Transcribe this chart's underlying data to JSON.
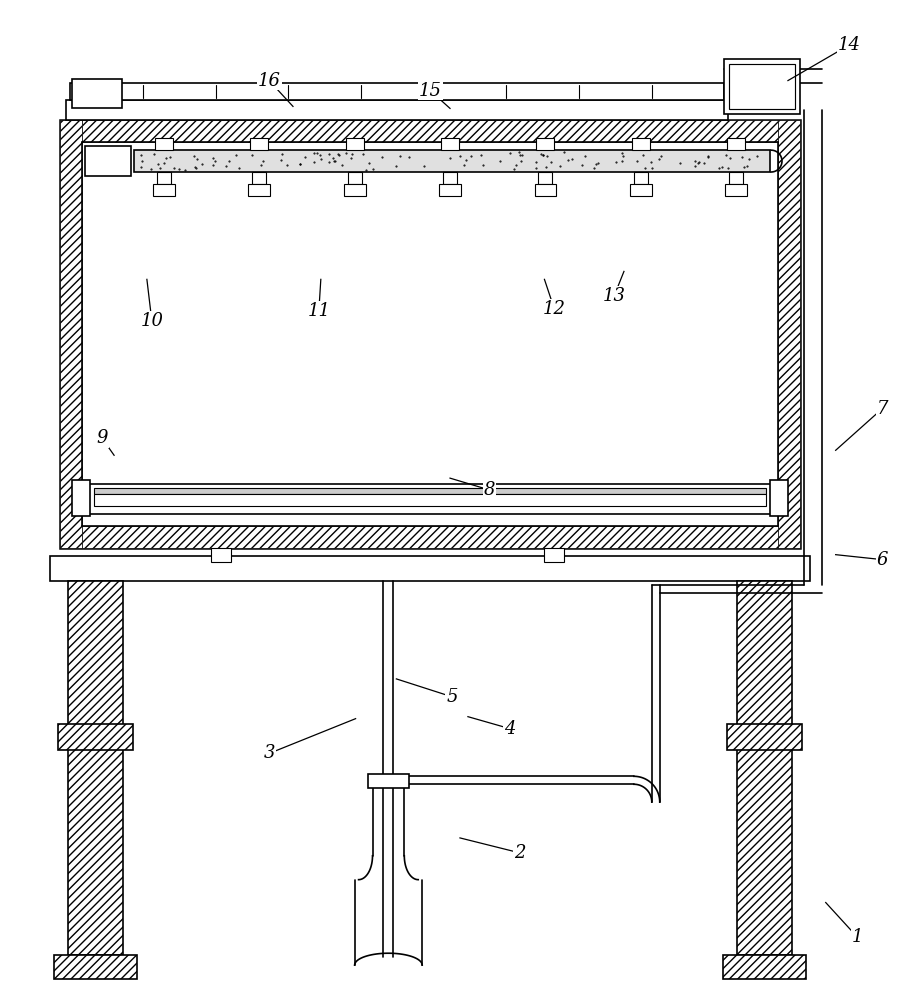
{
  "bg": "#ffffff",
  "lc": "#000000",
  "fig_w": 9.08,
  "fig_h": 10.0,
  "dpi": 100,
  "annotations": [
    [
      "1",
      860,
      940,
      828,
      905
    ],
    [
      "2",
      520,
      855,
      460,
      840
    ],
    [
      "3",
      268,
      755,
      355,
      720
    ],
    [
      "4",
      510,
      730,
      468,
      718
    ],
    [
      "5",
      452,
      698,
      396,
      680
    ],
    [
      "6",
      885,
      560,
      838,
      555
    ],
    [
      "7",
      885,
      408,
      838,
      450
    ],
    [
      "8",
      490,
      490,
      450,
      478
    ],
    [
      "9",
      100,
      438,
      112,
      455
    ],
    [
      "10",
      150,
      320,
      145,
      278
    ],
    [
      "11",
      318,
      310,
      320,
      278
    ],
    [
      "12",
      555,
      308,
      545,
      278
    ],
    [
      "13",
      615,
      295,
      625,
      270
    ],
    [
      "14",
      852,
      42,
      790,
      78
    ],
    [
      "15",
      430,
      88,
      450,
      106
    ],
    [
      "16",
      268,
      78,
      292,
      104
    ]
  ]
}
